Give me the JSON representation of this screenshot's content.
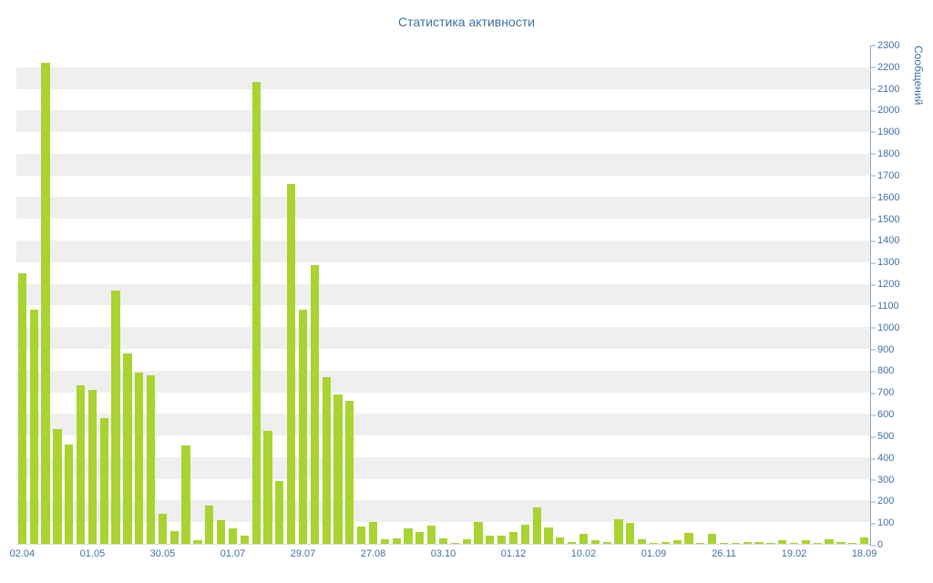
{
  "chart_data": {
    "type": "bar",
    "title": "Статистика активности",
    "ylabel": "Сообщений",
    "xlabel": "",
    "ylim": [
      0,
      2300
    ],
    "y_tick_step": 100,
    "grid": "striped-bands",
    "legend": "none",
    "bar_color": "#a9d330",
    "text_color": "#3f6fa5",
    "axis_line_color": "#8ca9c6",
    "stripe_color": "#efefef",
    "x_tick_labels": [
      {
        "i": 0,
        "label": "02.04"
      },
      {
        "i": 6,
        "label": "01.05"
      },
      {
        "i": 12,
        "label": "30.05"
      },
      {
        "i": 18,
        "label": "01.07"
      },
      {
        "i": 24,
        "label": "29.07"
      },
      {
        "i": 30,
        "label": "27.08"
      },
      {
        "i": 36,
        "label": "03.10"
      },
      {
        "i": 42,
        "label": "01.12"
      },
      {
        "i": 48,
        "label": "10.02"
      },
      {
        "i": 54,
        "label": "01.09"
      },
      {
        "i": 60,
        "label": "26.11"
      },
      {
        "i": 66,
        "label": "19.02"
      },
      {
        "i": 72,
        "label": "18.09"
      }
    ],
    "values": [
      1250,
      1080,
      2220,
      530,
      460,
      730,
      710,
      580,
      1170,
      880,
      790,
      780,
      140,
      60,
      455,
      15,
      175,
      110,
      70,
      40,
      2130,
      520,
      290,
      1660,
      1080,
      1285,
      770,
      690,
      660,
      80,
      100,
      20,
      25,
      70,
      55,
      85,
      25,
      5,
      20,
      100,
      40,
      40,
      55,
      90,
      170,
      75,
      30,
      10,
      45,
      15,
      10,
      115,
      95,
      20,
      5,
      10,
      15,
      50,
      5,
      45,
      5,
      5,
      10,
      10,
      5,
      15,
      5,
      15,
      5,
      20,
      10,
      5,
      30
    ]
  }
}
